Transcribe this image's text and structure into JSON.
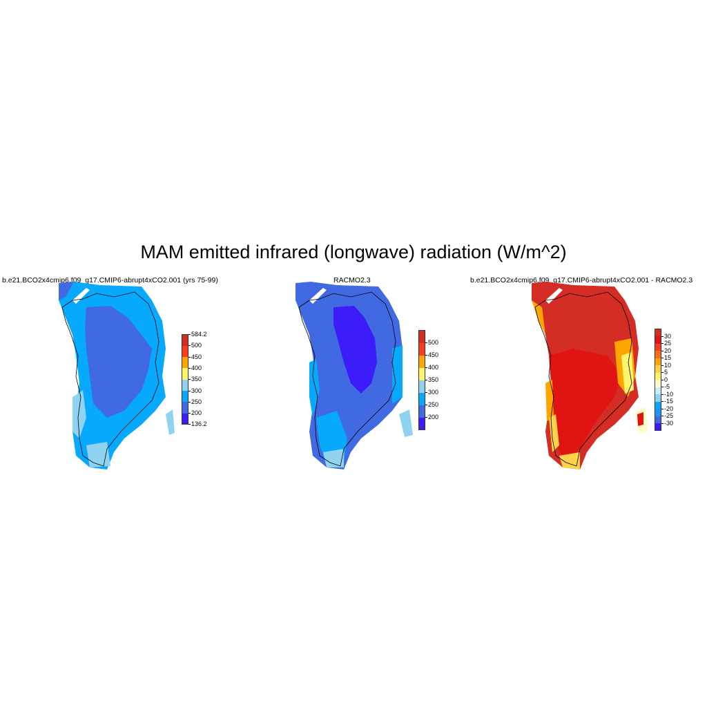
{
  "title": "MAM emitted infrared (longwave) radiation (W/m^2)",
  "panels": [
    {
      "id": "model",
      "title": "b.e21.BCO2x4cmip6.f09_g17.CMIP6-abrupt4xCO2.001 (yrs 75-99)",
      "colorbar": {
        "colors": [
          "#3c1cf8",
          "#4169e1",
          "#06a9fc",
          "#8fd3f0",
          "#fff56b",
          "#ffa500",
          "#ff3a1f",
          "#d32d26"
        ],
        "labels": [
          "136.2",
          "200",
          "250",
          "300",
          "350",
          "400",
          "450",
          "500",
          "584.2"
        ]
      }
    },
    {
      "id": "obs",
      "title": "RACMO2.3",
      "colorbar": {
        "colors": [
          "#3c1cf8",
          "#4169e1",
          "#06a9fc",
          "#8fd3f0",
          "#fff56b",
          "#ffa500",
          "#ff3a1f",
          "#d32d26"
        ],
        "labels": [
          "200",
          "250",
          "300",
          "350",
          "400",
          "450",
          "500"
        ]
      }
    },
    {
      "id": "diff",
      "title": "b.e21.BCO2x4cmip6.f09_g17.CMIP6-abrupt4xCO2.001 - RACMO2.3",
      "colorbar": {
        "colors": [
          "#3c1cf8",
          "#4169e1",
          "#1e90ff",
          "#06a9fc",
          "#8fd3f0",
          "#c9ecf7",
          "#fffbc2",
          "#fff56b",
          "#ffd24a",
          "#ffa500",
          "#ff6b1a",
          "#ff3a1f",
          "#e11414",
          "#d32d26"
        ],
        "labels": [
          "-30",
          "-25",
          "-20",
          "-15",
          "-10",
          "-5",
          "0",
          "5",
          "10",
          "15",
          "20",
          "25",
          "30"
        ]
      }
    }
  ]
}
